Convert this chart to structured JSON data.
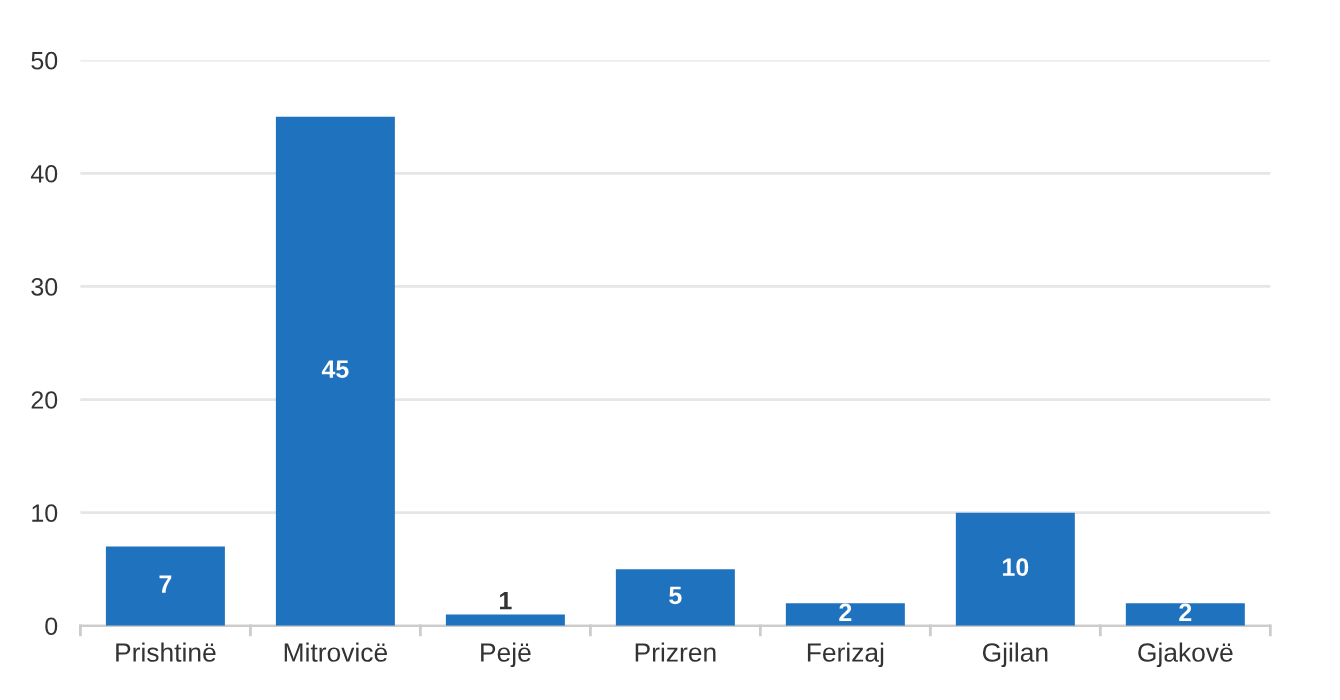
{
  "chart_data": {
    "type": "bar",
    "categories": [
      "Prishtinë",
      "Mitrovicë",
      "Pejë",
      "Prizren",
      "Ferizaj",
      "Gjilan",
      "Gjakovë"
    ],
    "values": [
      7,
      45,
      1,
      5,
      2,
      10,
      2
    ],
    "color": "#1f72be",
    "ylim": [
      0,
      50
    ],
    "yticks": [
      0,
      10,
      20,
      30,
      40,
      50
    ],
    "grid": "y",
    "data_labels": true,
    "legend": false
  }
}
